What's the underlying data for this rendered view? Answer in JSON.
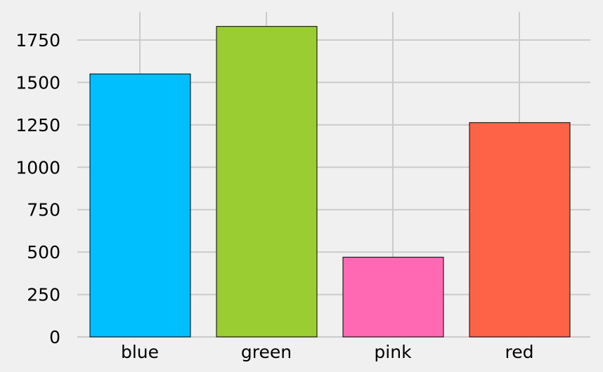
{
  "chart_data": {
    "type": "bar",
    "title": "",
    "xlabel": "",
    "ylabel": "",
    "categories": [
      "blue",
      "green",
      "pink",
      "red"
    ],
    "values": [
      1550,
      1830,
      470,
      1263
    ],
    "colors": [
      "#00bfff",
      "#9acd32",
      "#ff69b4",
      "#ff6347"
    ],
    "ylim": [
      0,
      1900
    ],
    "yticks": [
      0,
      250,
      500,
      750,
      1000,
      1250,
      1500,
      1750
    ],
    "ytick_labels": [
      "0",
      "250",
      "500",
      "750",
      "1000",
      "1250",
      "1500",
      "1750"
    ],
    "grid": true,
    "background": "#f0f0f0",
    "grid_color": "#cbcbcb",
    "bar_edge_color": "#000000"
  }
}
